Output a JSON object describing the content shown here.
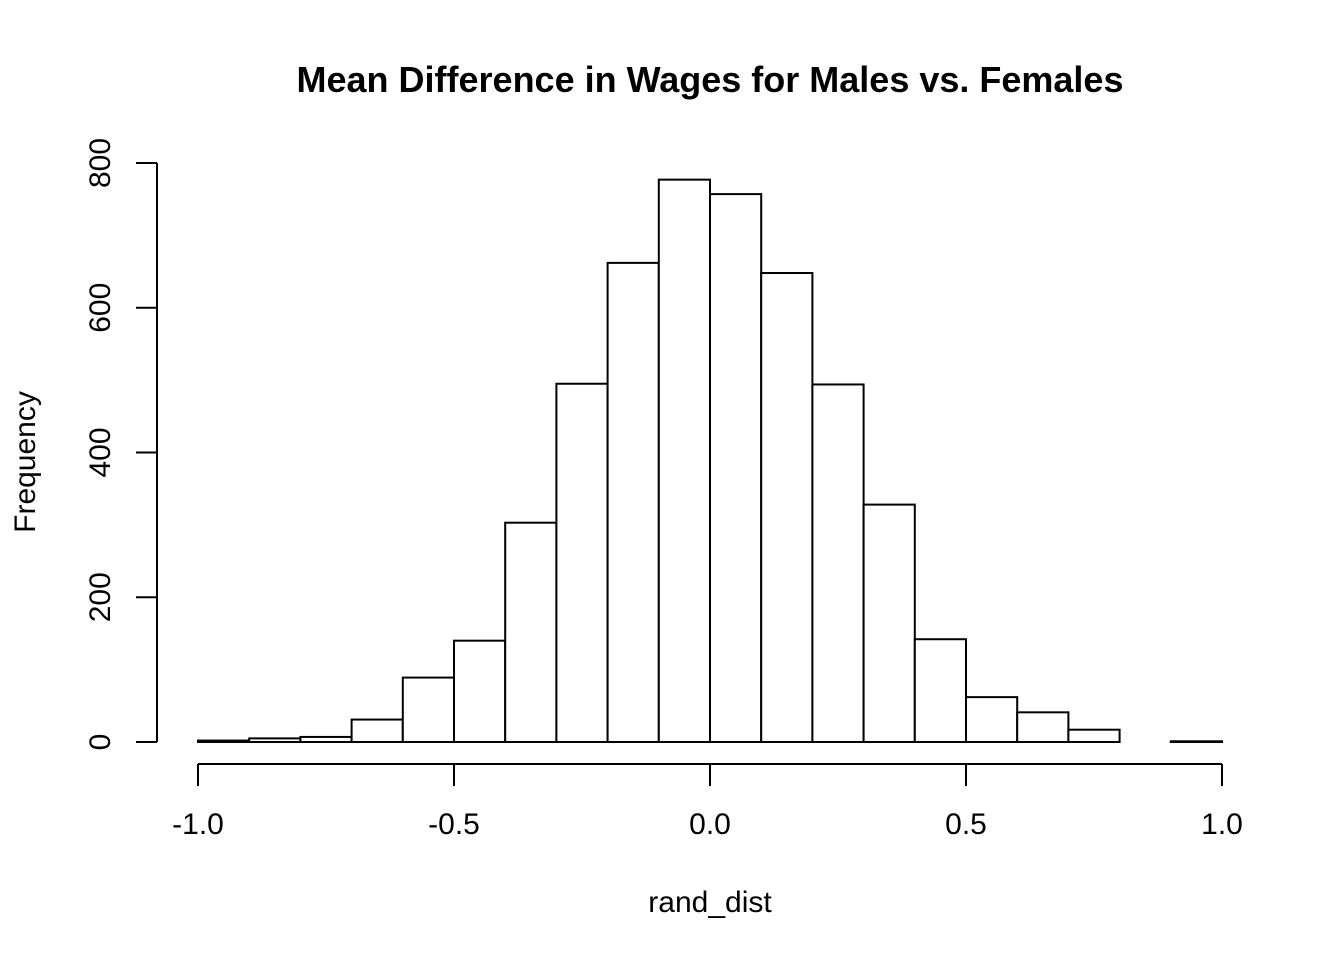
{
  "chart_data": {
    "type": "bar",
    "subtype": "histogram",
    "title": "Mean Difference in Wages for Males vs. Females",
    "xlabel": "rand_dist",
    "ylabel": "Frequency",
    "xlim": [
      -1.0,
      1.0
    ],
    "ylim": [
      0,
      800
    ],
    "grid": false,
    "bins": [
      {
        "start": -1.0,
        "end": -0.9,
        "count": 2
      },
      {
        "start": -0.9,
        "end": -0.8,
        "count": 5
      },
      {
        "start": -0.8,
        "end": -0.7,
        "count": 7
      },
      {
        "start": -0.7,
        "end": -0.6,
        "count": 31
      },
      {
        "start": -0.6,
        "end": -0.5,
        "count": 89
      },
      {
        "start": -0.5,
        "end": -0.4,
        "count": 140
      },
      {
        "start": -0.4,
        "end": -0.3,
        "count": 303
      },
      {
        "start": -0.3,
        "end": -0.2,
        "count": 495
      },
      {
        "start": -0.2,
        "end": -0.1,
        "count": 662
      },
      {
        "start": -0.1,
        "end": 0.0,
        "count": 777
      },
      {
        "start": 0.0,
        "end": 0.1,
        "count": 757
      },
      {
        "start": 0.1,
        "end": 0.2,
        "count": 648
      },
      {
        "start": 0.2,
        "end": 0.3,
        "count": 494
      },
      {
        "start": 0.3,
        "end": 0.4,
        "count": 328
      },
      {
        "start": 0.4,
        "end": 0.5,
        "count": 142
      },
      {
        "start": 0.5,
        "end": 0.6,
        "count": 62
      },
      {
        "start": 0.6,
        "end": 0.7,
        "count": 41
      },
      {
        "start": 0.7,
        "end": 0.8,
        "count": 17
      },
      {
        "start": 0.8,
        "end": 0.9,
        "count": 0
      },
      {
        "start": 0.9,
        "end": 1.0,
        "count": 1
      }
    ],
    "x_ticks": [
      {
        "value": -1.0,
        "label": "-1.0"
      },
      {
        "value": -0.5,
        "label": "-0.5"
      },
      {
        "value": 0.0,
        "label": "0.0"
      },
      {
        "value": 0.5,
        "label": "0.5"
      },
      {
        "value": 1.0,
        "label": "1.0"
      }
    ],
    "y_ticks": [
      {
        "value": 0,
        "label": "0"
      },
      {
        "value": 200,
        "label": "200"
      },
      {
        "value": 400,
        "label": "400"
      },
      {
        "value": 600,
        "label": "600"
      },
      {
        "value": 800,
        "label": "800"
      }
    ],
    "bar_fill": "#ffffff",
    "bar_stroke": "#000000"
  }
}
